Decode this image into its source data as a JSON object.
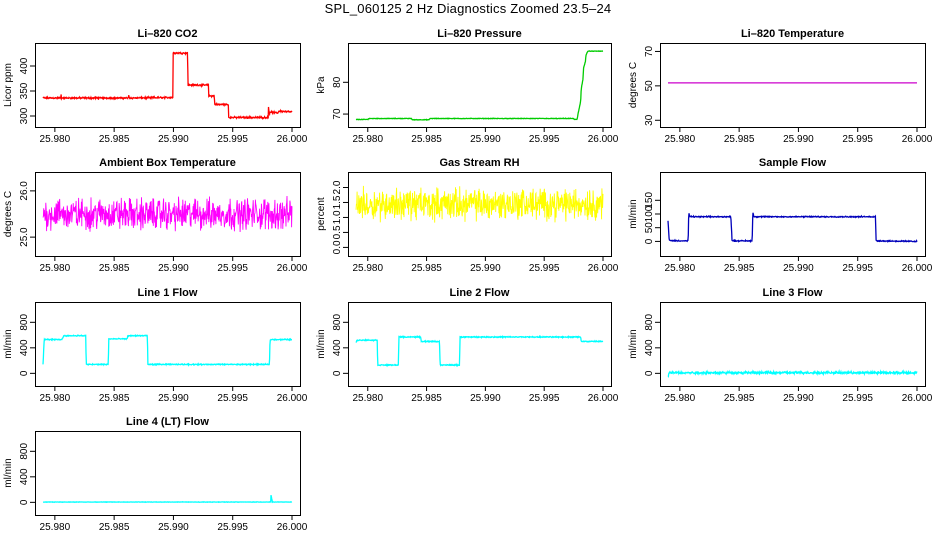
{
  "page_title": "SPL_060125  2 Hz Diagnostics Zoomed 23.5–24",
  "chart_data": [
    {
      "id": "co2",
      "type": "line",
      "title": "Li–820 CO2",
      "ylabel": "Licor ppm",
      "color": "#ff0000",
      "xlim": [
        25.979,
        26.0
      ],
      "ylim": [
        288,
        436
      ],
      "xticks": [
        25.98,
        25.985,
        25.99,
        25.995,
        26.0
      ],
      "xtick_labels": [
        "25.980",
        "25.985",
        "25.990",
        "25.995",
        "26.000"
      ],
      "yticks": [
        300,
        350,
        400
      ],
      "ytick_labels": [
        "300",
        "350",
        "400"
      ],
      "x": [
        25.979,
        25.9805,
        25.98051,
        25.98056,
        25.9862,
        25.98622,
        25.9863,
        25.98995,
        25.98997,
        25.9912,
        25.99122,
        25.99295,
        25.99297,
        25.99345,
        25.99347,
        25.99463,
        25.99465,
        25.998,
        25.99802,
        25.9981,
        25.99812,
        25.9988,
        25.9989,
        26.0
      ],
      "y": [
        336,
        336,
        348,
        336,
        336,
        342,
        336,
        337,
        426,
        426,
        362,
        362,
        340,
        340,
        323,
        323,
        297,
        297,
        318,
        302,
        308,
        306,
        310,
        308
      ],
      "noise": 1.2
    },
    {
      "id": "pressure",
      "type": "line",
      "title": "Li–820 Pressure",
      "ylabel": "kPa",
      "color": "#00cc00",
      "xlim": [
        25.979,
        26.0
      ],
      "ylim": [
        67.5,
        90.8
      ],
      "xticks": [
        25.98,
        25.985,
        25.99,
        25.995,
        26.0
      ],
      "xtick_labels": [
        "25.980",
        "25.985",
        "25.990",
        "25.995",
        "26.000"
      ],
      "yticks": [
        70,
        80
      ],
      "ytick_labels": [
        "70",
        "80"
      ],
      "x": [
        25.979,
        25.98,
        25.9801,
        25.9837,
        25.9838,
        25.9852,
        25.9853,
        25.9975,
        25.99755,
        25.9978,
        25.9979,
        25.9981,
        25.99815,
        25.9983,
        25.99835,
        25.9985,
        25.99855,
        25.99865,
        25.9987,
        26.0
      ],
      "y": [
        68.3,
        68.3,
        68.6,
        68.6,
        68.2,
        68.2,
        68.6,
        68.6,
        68.3,
        68.3,
        70.5,
        74.0,
        78.0,
        81.0,
        84.5,
        86.5,
        88.5,
        89.3,
        89.8,
        89.8
      ],
      "noise": 0.06
    },
    {
      "id": "temperature",
      "type": "line",
      "title": "Li–820 Temperature",
      "ylabel": "degrees C",
      "color": "#cc00cc",
      "xlim": [
        25.979,
        26.0
      ],
      "ylim": [
        29,
        72
      ],
      "xticks": [
        25.98,
        25.985,
        25.99,
        25.995,
        26.0
      ],
      "xtick_labels": [
        "25.980",
        "25.985",
        "25.990",
        "25.995",
        "26.000"
      ],
      "yticks": [
        30,
        50,
        70
      ],
      "ytick_labels": [
        "30",
        "50",
        "70"
      ],
      "x": [
        25.979,
        26.0
      ],
      "y": [
        51.7,
        51.7
      ],
      "noise": 0
    },
    {
      "id": "ambient",
      "type": "line",
      "title": "Ambient Box Temperature",
      "ylabel": "degrees C",
      "color": "#ff00ff",
      "xlim": [
        25.979,
        26.0
      ],
      "ylim": [
        24.7,
        26.3
      ],
      "xticks": [
        25.98,
        25.985,
        25.99,
        25.995,
        26.0
      ],
      "xtick_labels": [
        "25.980",
        "25.985",
        "25.990",
        "25.995",
        "26.000"
      ],
      "yticks": [
        25.0,
        26.0
      ],
      "ytick_labels": [
        "25.0",
        "26.0"
      ],
      "x": [
        25.979,
        26.0
      ],
      "y": [
        25.5,
        25.5
      ],
      "noise": 0.26
    },
    {
      "id": "rh",
      "type": "line",
      "title": "Gas Stream RH",
      "ylabel": "percent",
      "color": "#ffff00",
      "xlim": [
        25.979,
        26.0
      ],
      "ylim": [
        -0.12,
        2.35
      ],
      "xticks": [
        25.98,
        25.985,
        25.99,
        25.995,
        26.0
      ],
      "xtick_labels": [
        "25.980",
        "25.985",
        "25.990",
        "25.995",
        "26.000"
      ],
      "yticks": [
        0.0,
        0.5,
        1.0,
        1.5,
        2.0
      ],
      "ytick_labels": [
        "0.0",
        "0.5",
        "1.0",
        "1.5",
        "2.0"
      ],
      "x": [
        25.979,
        26.0
      ],
      "y": [
        1.45,
        1.45
      ],
      "noise": 0.4
    },
    {
      "id": "sampleflow",
      "type": "line",
      "title": "Sample Flow",
      "ylabel": "ml/min",
      "color": "#0000bb",
      "xlim": [
        25.979,
        26.0
      ],
      "ylim": [
        -35,
        235
      ],
      "xticks": [
        25.98,
        25.985,
        25.99,
        25.995,
        26.0
      ],
      "xtick_labels": [
        "25.980",
        "25.985",
        "25.990",
        "25.995",
        "26.000"
      ],
      "yticks": [
        0,
        50,
        100,
        150
      ],
      "ytick_labels": [
        "0",
        "50",
        "100",
        "150"
      ],
      "x": [
        25.979,
        25.9791,
        25.9792,
        25.9803,
        25.9807,
        25.98075,
        25.98085,
        25.9843,
        25.9844,
        25.9846,
        25.9861,
        25.98615,
        25.98625,
        25.9965,
        25.99655,
        25.9966,
        26.0
      ],
      "y": [
        75,
        5,
        3,
        2,
        2,
        105,
        90,
        90,
        5,
        2,
        2,
        108,
        90,
        90,
        5,
        2,
        0
      ],
      "noise": 1.5
    },
    {
      "id": "line1",
      "type": "line",
      "title": "Line 1 Flow",
      "ylabel": "ml/min",
      "color": "#00ffff",
      "xlim": [
        25.979,
        26.0
      ],
      "ylim": [
        -120,
        1040
      ],
      "xticks": [
        25.98,
        25.985,
        25.99,
        25.995,
        26.0
      ],
      "xtick_labels": [
        "25.980",
        "25.985",
        "25.990",
        "25.995",
        "26.000"
      ],
      "yticks": [
        0,
        400,
        800
      ],
      "ytick_labels": [
        "0",
        "400",
        "800"
      ],
      "x": [
        25.979,
        25.9791,
        25.9806,
        25.98075,
        25.9826,
        25.98265,
        25.9845,
        25.98455,
        25.9861,
        25.98615,
        25.9878,
        25.98785,
        25.9981,
        25.99815,
        26.0
      ],
      "y": [
        140,
        530,
        530,
        590,
        590,
        140,
        140,
        540,
        540,
        590,
        590,
        140,
        140,
        530,
        530
      ],
      "noise": 6
    },
    {
      "id": "line2",
      "type": "line",
      "title": "Line 2 Flow",
      "ylabel": "ml/min",
      "color": "#00ffff",
      "xlim": [
        25.979,
        26.0
      ],
      "ylim": [
        -120,
        1040
      ],
      "xticks": [
        25.98,
        25.985,
        25.99,
        25.995,
        26.0
      ],
      "xtick_labels": [
        "25.980",
        "25.985",
        "25.990",
        "25.995",
        "26.000"
      ],
      "yticks": [
        0,
        400,
        800
      ],
      "ytick_labels": [
        "0",
        "400",
        "800"
      ],
      "x": [
        25.979,
        25.9791,
        25.9808,
        25.98085,
        25.9826,
        25.98265,
        25.9845,
        25.98455,
        25.9861,
        25.98615,
        25.9878,
        25.98785,
        25.9981,
        25.99815,
        26.0
      ],
      "y": [
        480,
        520,
        520,
        130,
        130,
        570,
        570,
        500,
        500,
        130,
        130,
        570,
        570,
        500,
        500
      ],
      "noise": 6
    },
    {
      "id": "line3",
      "type": "line",
      "title": "Line 3 Flow",
      "ylabel": "ml/min",
      "color": "#00ffff",
      "xlim": [
        25.979,
        26.0
      ],
      "ylim": [
        -120,
        1040
      ],
      "xticks": [
        25.98,
        25.985,
        25.99,
        25.995,
        26.0
      ],
      "xtick_labels": [
        "25.980",
        "25.985",
        "25.990",
        "25.995",
        "26.000"
      ],
      "yticks": [
        0,
        400,
        800
      ],
      "ytick_labels": [
        "0",
        "400",
        "800"
      ],
      "x": [
        25.979,
        25.9791,
        25.98,
        26.0
      ],
      "y": [
        -50,
        10,
        10,
        10
      ],
      "noise": 14
    },
    {
      "id": "line4",
      "type": "line",
      "title": "Line 4 (LT) Flow",
      "ylabel": "ml/min",
      "color": "#00ffff",
      "xlim": [
        25.979,
        26.0
      ],
      "ylim": [
        -120,
        1040
      ],
      "xticks": [
        25.98,
        25.985,
        25.99,
        25.995,
        26.0
      ],
      "xtick_labels": [
        "25.980",
        "25.985",
        "25.990",
        "25.995",
        "26.000"
      ],
      "yticks": [
        0,
        400,
        800
      ],
      "ytick_labels": [
        "0",
        "400",
        "800"
      ],
      "x": [
        25.979,
        25.9982,
        25.99822,
        25.99835,
        25.99837,
        26.0
      ],
      "y": [
        5,
        5,
        120,
        5,
        5,
        5
      ],
      "noise": 2
    }
  ]
}
